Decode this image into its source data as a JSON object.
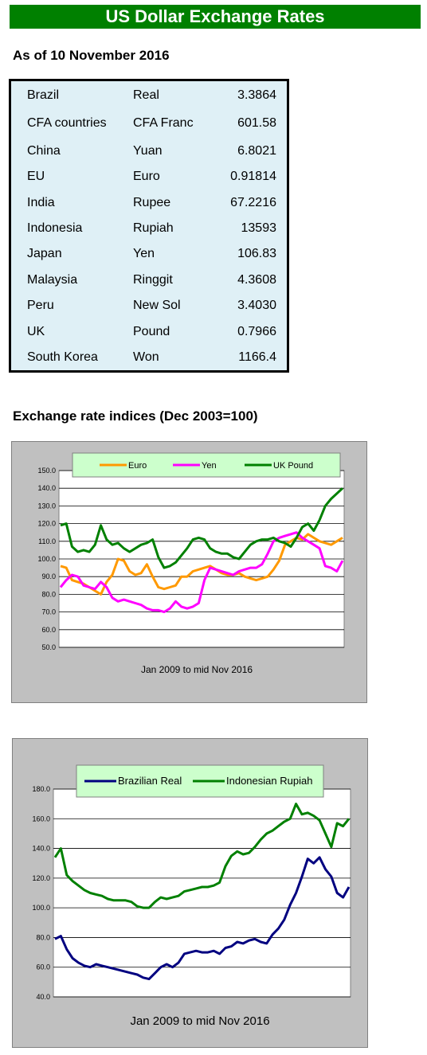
{
  "banner": {
    "title": "US Dollar Exchange Rates"
  },
  "asof": {
    "label": "As of 10 November 2016"
  },
  "rates": [
    {
      "country": "Brazil",
      "currency": "Real",
      "value": "3.3864"
    },
    {
      "country": "CFA countries",
      "currency": "CFA Franc",
      "value": "601.58"
    },
    {
      "country": "China",
      "currency": "Yuan",
      "value": "6.8021"
    },
    {
      "country": "EU",
      "currency": "Euro",
      "value": "0.91814"
    },
    {
      "country": "India",
      "currency": "Rupee",
      "value": "67.2216"
    },
    {
      "country": "Indonesia",
      "currency": "Rupiah",
      "value": "13593"
    },
    {
      "country": "Japan",
      "currency": "Yen",
      "value": "106.83"
    },
    {
      "country": "Malaysia",
      "currency": "Ringgit",
      "value": "4.3608"
    },
    {
      "country": "Peru",
      "currency": "New Sol",
      "value": "3.4030"
    },
    {
      "country": "UK",
      "currency": "Pound",
      "value": "0.7966"
    },
    {
      "country": "South Korea",
      "currency": "Won",
      "value": "1166.4"
    }
  ],
  "indices": {
    "title": "Exchange rate indices (Dec 2003=100)"
  },
  "chart_data": [
    {
      "type": "line",
      "title": "",
      "xlabel": "Jan 2009 to mid Nov 2016",
      "ylabel": "",
      "ylim": [
        50,
        150
      ],
      "yticks": [
        "150.0",
        "140.0",
        "130.0",
        "120.0",
        "110.0",
        "100.0",
        "90.0",
        "80.0",
        "70.0",
        "60.0",
        "50.0"
      ],
      "grid": true,
      "legend": "top",
      "series": [
        {
          "name": "Euro",
          "color": "#ff9900",
          "values": [
            96,
            95,
            88,
            87,
            86,
            84,
            82,
            80,
            87,
            91,
            100,
            99,
            93,
            91,
            92,
            97,
            90,
            84,
            83,
            84,
            85,
            90,
            90,
            93,
            94,
            95,
            96,
            94,
            92,
            91,
            91,
            92,
            90,
            89,
            88,
            89,
            90,
            94,
            99,
            108,
            110,
            112,
            111,
            114,
            112,
            110,
            109,
            108,
            110,
            112
          ]
        },
        {
          "name": "Yen",
          "color": "#ff00ff",
          "values": [
            84,
            88,
            91,
            90,
            85,
            84,
            83,
            87,
            84,
            78,
            76,
            77,
            76,
            75,
            74,
            72,
            71,
            71,
            70,
            72,
            76,
            73,
            72,
            73,
            75,
            88,
            95,
            94,
            93,
            92,
            91,
            93,
            94,
            95,
            95,
            97,
            103,
            110,
            112,
            113,
            114,
            115,
            112,
            110,
            108,
            106,
            96,
            95,
            93,
            99
          ]
        },
        {
          "name": "UK Pound",
          "color": "#008000",
          "values": [
            119,
            120,
            107,
            104,
            105,
            104,
            108,
            119,
            111,
            108,
            109,
            106,
            104,
            106,
            108,
            109,
            111,
            101,
            95,
            96,
            98,
            102,
            106,
            111,
            112,
            111,
            106,
            104,
            103,
            103,
            101,
            100,
            104,
            108,
            110,
            111,
            111,
            112,
            110,
            109,
            107,
            112,
            118,
            120,
            116,
            122,
            130,
            134,
            137,
            140
          ]
        }
      ]
    },
    {
      "type": "line",
      "title": "",
      "xlabel": "Jan 2009 to mid Nov 2016",
      "ylabel": "",
      "ylim": [
        40,
        180
      ],
      "yticks": [
        "180.0",
        "160.0",
        "140.0",
        "120.0",
        "100.0",
        "80.0",
        "60.0",
        "40.0"
      ],
      "grid": true,
      "legend": "top",
      "series": [
        {
          "name": "Brazilian Real",
          "color": "#000080",
          "values": [
            79,
            81,
            72,
            66,
            63,
            61,
            60,
            62,
            61,
            60,
            59,
            58,
            57,
            56,
            55,
            53,
            52,
            56,
            60,
            62,
            60,
            63,
            69,
            70,
            71,
            70,
            70,
            71,
            69,
            73,
            74,
            77,
            76,
            78,
            79,
            77,
            76,
            82,
            86,
            92,
            102,
            110,
            121,
            133,
            130,
            134,
            126,
            121,
            110,
            107,
            114
          ]
        },
        {
          "name": "Indonesian Rupiah",
          "color": "#008000",
          "values": [
            134,
            140,
            122,
            118,
            115,
            112,
            110,
            109,
            108,
            106,
            105,
            105,
            105,
            104,
            101,
            100,
            100,
            104,
            107,
            106,
            107,
            108,
            111,
            112,
            113,
            114,
            114,
            115,
            117,
            128,
            135,
            138,
            136,
            137,
            141,
            146,
            150,
            152,
            155,
            158,
            160,
            170,
            163,
            164,
            162,
            159,
            150,
            141,
            157,
            155,
            160
          ]
        }
      ]
    }
  ]
}
